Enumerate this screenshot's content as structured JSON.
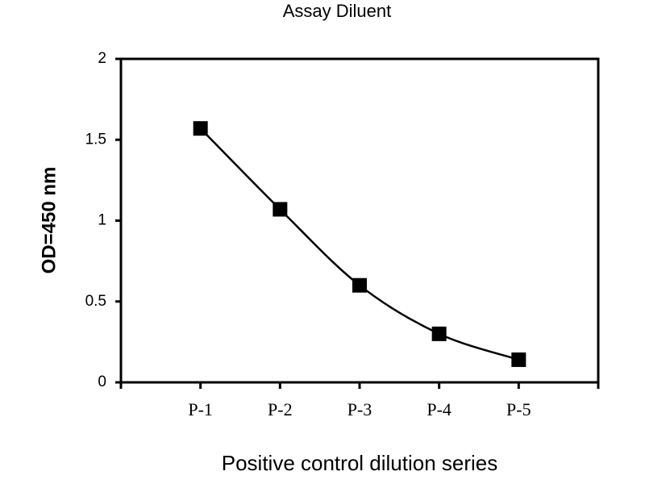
{
  "chart_data": {
    "type": "line",
    "title": "Assay Diluent",
    "x_label": "Positive control dilution series",
    "y_label": "OD=450 nm",
    "categories": [
      "P-1",
      "P-2",
      "P-3",
      "P-4",
      "P-5"
    ],
    "values": [
      1.57,
      1.07,
      0.6,
      0.3,
      0.14
    ],
    "color": "#000000",
    "ylim": [
      0,
      2
    ],
    "yticks": [
      0,
      0.5,
      1,
      1.5,
      2
    ],
    "grid": false
  }
}
